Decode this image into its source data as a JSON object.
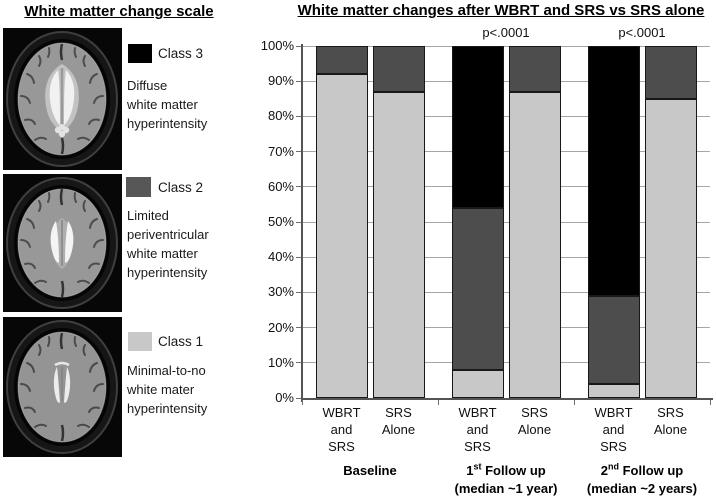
{
  "left_panel": {
    "title": "White matter change scale",
    "classes": [
      {
        "label": "Class 3",
        "swatch_color": "#000000",
        "description_lines": [
          "Diffuse",
          "white matter",
          "hyperintensity"
        ]
      },
      {
        "label": "Class 2",
        "swatch_color": "#575757",
        "description_lines": [
          "Limited",
          "periventricular",
          "white matter",
          "hyperintensity"
        ]
      },
      {
        "label": "Class 1",
        "swatch_color": "#c8c8c8",
        "description_lines": [
          "Minimal-to-no",
          "white mater",
          "hyperintensity"
        ]
      }
    ]
  },
  "chart_data": {
    "type": "bar",
    "stacked": true,
    "title": "White matter changes after WBRT and SRS vs SRS alone",
    "ylabel": "",
    "ylim": [
      0,
      100
    ],
    "grid": true,
    "legend_position": "external-left-panel",
    "ytick_labels": [
      "0%",
      "10%",
      "20%",
      "30%",
      "40%",
      "50%",
      "60%",
      "70%",
      "80%",
      "90%",
      "100%"
    ],
    "categories": [
      [
        "WBRT",
        "and",
        "SRS"
      ],
      [
        "SRS",
        "Alone"
      ],
      [
        "WBRT",
        "and",
        "SRS"
      ],
      [
        "SRS",
        "Alone"
      ],
      [
        "WBRT",
        "and",
        "SRS"
      ],
      [
        "SRS",
        "Alone"
      ]
    ],
    "group_labels": [
      {
        "pre": "",
        "sup": "",
        "post": "Baseline",
        "line2": ""
      },
      {
        "pre": "1",
        "sup": "st",
        "post": " Follow up",
        "line2": "(median ~1 year)"
      },
      {
        "pre": "2",
        "sup": "nd",
        "post": " Follow up",
        "line2": "(median ~2 years)"
      }
    ],
    "annotations": [
      {
        "text": "p<.0001",
        "group": 1
      },
      {
        "text": "p<.0001",
        "group": 2
      }
    ],
    "series": [
      {
        "name": "Class 1",
        "color": "#c8c8c8",
        "values": [
          92,
          87,
          8,
          87,
          4,
          85
        ]
      },
      {
        "name": "Class 2",
        "color": "#4d4d4d",
        "values": [
          8,
          13,
          46,
          13,
          25,
          15
        ]
      },
      {
        "name": "Class 3",
        "color": "#000000",
        "values": [
          0,
          0,
          46,
          0,
          71,
          0
        ]
      }
    ]
  }
}
